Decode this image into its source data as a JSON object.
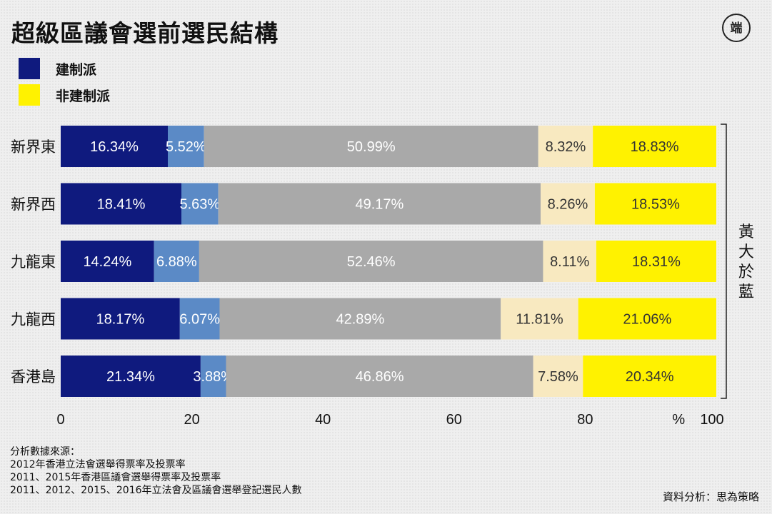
{
  "header": {
    "title": "超級區議會選前選民結構",
    "logo_glyph": "端"
  },
  "legend": {
    "items": [
      {
        "label": "建制派",
        "color": "#0f1a7e"
      },
      {
        "label": "非建制派",
        "color": "#fff200"
      }
    ]
  },
  "chart_data": {
    "type": "bar",
    "orientation": "horizontal",
    "stacked": true,
    "categories": [
      "新界東",
      "新界西",
      "九龍東",
      "九龍西",
      "香港島"
    ],
    "series": [
      {
        "color": "#0f1a7e",
        "text_color": "#ffffff",
        "values": [
          16.34,
          18.41,
          14.24,
          18.17,
          21.34
        ]
      },
      {
        "color": "#5b8ac6",
        "text_color": "#ffffff",
        "values": [
          5.52,
          5.63,
          6.88,
          6.07,
          3.88
        ]
      },
      {
        "color": "#a9a9a9",
        "text_color": "#ffffff",
        "values": [
          50.99,
          49.17,
          52.46,
          42.89,
          46.86
        ]
      },
      {
        "color": "#f8e9c0",
        "text_color": "#333333",
        "values": [
          8.32,
          8.26,
          8.11,
          11.81,
          7.58
        ]
      },
      {
        "color": "#fff200",
        "text_color": "#333333",
        "values": [
          18.83,
          18.53,
          18.31,
          21.06,
          20.34
        ]
      }
    ],
    "data_labels": [
      [
        "16.34%",
        "5.52%",
        "50.99%",
        "8.32%",
        "18.83%"
      ],
      [
        "18.41%",
        "5.63%",
        "49.17%",
        "8.26%",
        "18.53%"
      ],
      [
        "14.24%",
        "6.88%",
        "52.46%",
        "8.11%",
        "18.31%"
      ],
      [
        "18.17%",
        "6.07%",
        "42.89%",
        "11.81%",
        "21.06%"
      ],
      [
        "21.34%",
        "3.88%",
        "46.86%",
        "7.58%",
        "20.34%"
      ]
    ],
    "xlim": [
      0,
      100
    ],
    "xticks": [
      "0",
      "20",
      "40",
      "60",
      "80",
      "100"
    ],
    "xunit": "%",
    "grid": false,
    "bracket_annotation": "黃大於藍"
  },
  "footer": {
    "sources": [
      "分析數據來源：",
      "2012年香港立法會選舉得票率及投票率",
      "2011、2015年香港區議會選舉得票率及投票率",
      "2011、2012、2015、2016年立法會及區議會選舉登記選民人數"
    ],
    "credit": "資料分析：思為策略"
  }
}
